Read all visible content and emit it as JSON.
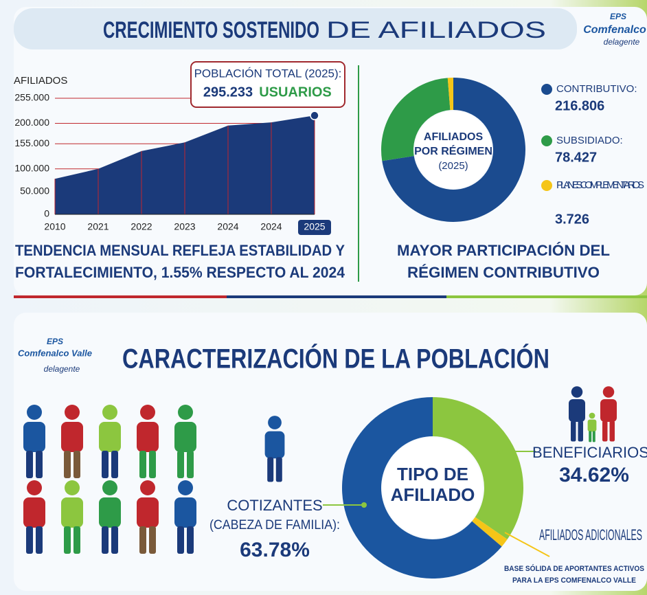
{
  "header": {
    "title_bold": "CRECIMIENTO SOSTENIDO",
    "title_rest": "DE AFILIADOS"
  },
  "logo_top": {
    "line1": "EPS",
    "line2": "Comfenalco",
    "line3": "delagente"
  },
  "section2": {
    "title": "CARACTERIZACIÓN DE LA POBLACIÓN"
  },
  "logo_bottom": {
    "line1": "EPS",
    "line2": "Comfenalco Valle",
    "line3": "delagente"
  },
  "chart_data": [
    {
      "type": "area",
      "y_label": "AFILIADOS",
      "color": "#1b3a7a",
      "grid_color": "#c0272d",
      "grid": true,
      "categories": [
        "2010",
        "2021",
        "2022",
        "2023",
        "2024",
        "2024",
        "2025"
      ],
      "values": [
        78000,
        100000,
        139000,
        158000,
        195000,
        202000,
        217000
      ],
      "ylim": [
        0,
        255000
      ],
      "yticks": [
        0,
        {
          "value": 50000,
          "label": "50.000"
        },
        {
          "value": 100000,
          "label": "100.000"
        },
        {
          "value": 155000,
          "label": "155.000"
        },
        {
          "value": 200000,
          "label": "200.000"
        },
        {
          "value": 255000,
          "label": "255.000"
        }
      ],
      "annotation": {
        "title": "POBLACIÓN TOTAL (2025):",
        "value": "295.233",
        "unit": "USUARIOS"
      },
      "caption": [
        "TENDENCIA MENSUAL REFLEJA ESTABILIDAD Y",
        "FORTALECIMIENTO, 1.55% RESPECTO AL 2024"
      ]
    },
    {
      "type": "donut",
      "center": [
        "AFILIADOS",
        "POR RÉGIMEN",
        "(2025)"
      ],
      "categories": [
        "CONTRIBUTIVO:",
        "SUBSIDIADO:",
        "PLANES COMPLEMENTARIOS"
      ],
      "values": [
        216806,
        78427,
        3726
      ],
      "value_labels": [
        "216.806",
        "78.427",
        "3.726"
      ],
      "colors": [
        "#1b4b8f",
        "#2e9b48",
        "#f5c518"
      ],
      "caption": [
        "MAYOR PARTICIPACIÓN DEL",
        "RÉGIMEN CONTRIBUTIVO"
      ]
    },
    {
      "type": "donut",
      "center": [
        "TIPO DE",
        "AFILIADO"
      ],
      "categories": [
        "BENEFICIARIOS",
        "AFILIADOS ADICIONALES",
        "COTIZANTES"
      ],
      "values": [
        34.62,
        1.6,
        63.78
      ],
      "value_labels": [
        "34.62%",
        null,
        "63.78%"
      ],
      "colors": [
        "#8cc63f",
        "#f5c518",
        "#1b56a0"
      ],
      "notes": [
        "(CABEZA DE FAMILIA):",
        "BASE SÓLIDA DE APORTANTES ACTIVOS",
        "PARA LA EPS COMFENALCO VALLE"
      ]
    }
  ]
}
